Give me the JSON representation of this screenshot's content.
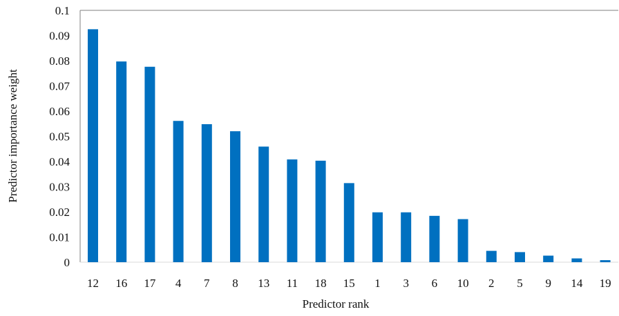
{
  "chart_data": {
    "type": "bar",
    "title": "",
    "xlabel": "Predictor rank",
    "ylabel": "Predictor importance weight",
    "categories": [
      "12",
      "16",
      "17",
      "4",
      "7",
      "8",
      "13",
      "11",
      "18",
      "15",
      "1",
      "3",
      "6",
      "10",
      "2",
      "5",
      "9",
      "14",
      "19"
    ],
    "values": [
      0.0925,
      0.0797,
      0.0776,
      0.0561,
      0.0548,
      0.052,
      0.0459,
      0.0408,
      0.0403,
      0.0314,
      0.0198,
      0.0198,
      0.0184,
      0.0171,
      0.0045,
      0.004,
      0.0026,
      0.0015,
      0.0008
    ],
    "ylim": [
      0,
      0.1
    ],
    "yticks": [
      "0",
      "0.01",
      "0.02",
      "0.03",
      "0.04",
      "0.05",
      "0.06",
      "0.07",
      "0.08",
      "0.09",
      "0.1"
    ],
    "grid": false,
    "legend": "none",
    "bar_color": "#0070C0"
  }
}
